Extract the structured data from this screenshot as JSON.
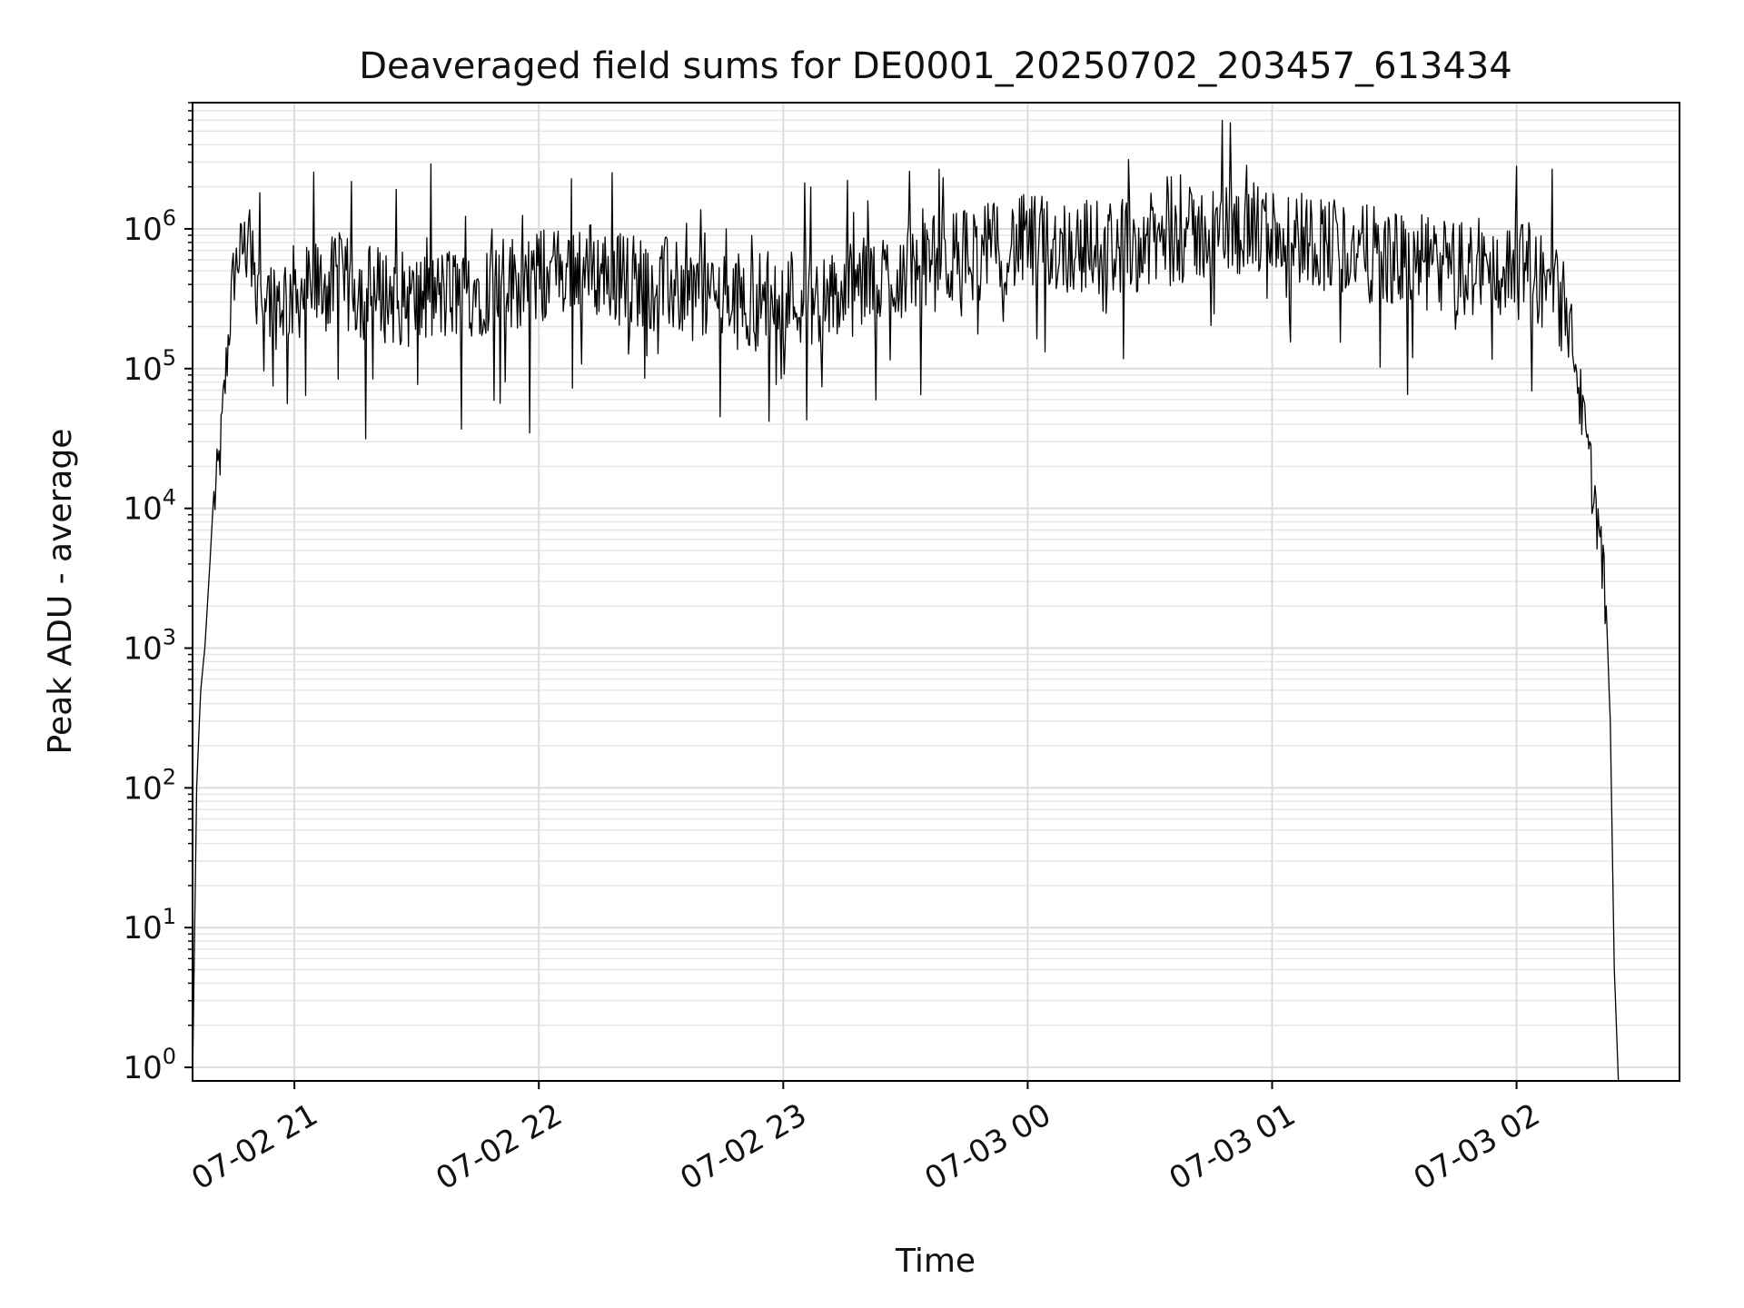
{
  "chart_data": {
    "type": "line",
    "title": "Deaveraged field sums for DE0001_20250702_203457_613434",
    "xlabel": "Time",
    "ylabel": "Peak ADU - average",
    "y_scale": "log",
    "xlim": [
      "07-02 20:35",
      "07-03 02:40"
    ],
    "ylim": [
      0.8,
      8000000
    ],
    "x_ticks": [
      "07-02 21",
      "07-02 22",
      "07-02 23",
      "07-03 00",
      "07-03 01",
      "07-03 02"
    ],
    "y_ticks": [
      {
        "base": "10",
        "exp": "0",
        "value": 1
      },
      {
        "base": "10",
        "exp": "1",
        "value": 10
      },
      {
        "base": "10",
        "exp": "2",
        "value": 100
      },
      {
        "base": "10",
        "exp": "3",
        "value": 1000
      },
      {
        "base": "10",
        "exp": "4",
        "value": 10000
      },
      {
        "base": "10",
        "exp": "5",
        "value": 100000
      },
      {
        "base": "10",
        "exp": "6",
        "value": 1000000
      }
    ],
    "grid": true,
    "legend": "none",
    "line_color": "#000000",
    "series": [
      {
        "x": [
          "07-02 20:35",
          "07-02 20:36",
          "07-02 20:37",
          "07-02 20:38",
          "07-02 20:39",
          "07-02 20:40",
          "07-02 20:41",
          "07-02 20:42",
          "07-02 20:43",
          "07-02 20:44",
          "07-02 20:45",
          "07-02 20:46",
          "07-02 20:47",
          "07-02 20:48",
          "07-02 20:50",
          "07-02 20:52",
          "07-02 20:55",
          "07-02 21:00",
          "07-02 21:10",
          "07-02 21:20",
          "07-02 21:30",
          "07-02 21:40",
          "07-02 21:50",
          "07-02 22:00",
          "07-02 22:10",
          "07-02 22:20",
          "07-02 22:30",
          "07-02 22:40",
          "07-02 22:50",
          "07-02 23:00",
          "07-02 23:10",
          "07-02 23:20",
          "07-02 23:30",
          "07-02 23:40",
          "07-02 23:50",
          "07-03 00:00",
          "07-03 00:10",
          "07-03 00:20",
          "07-03 00:30",
          "07-03 00:40",
          "07-03 00:50",
          "07-03 01:00",
          "07-03 01:10",
          "07-03 01:20",
          "07-03 01:30",
          "07-03 01:40",
          "07-03 01:50",
          "07-03 02:00",
          "07-03 02:05",
          "07-03 02:08",
          "07-03 02:10",
          "07-03 02:12",
          "07-03 02:14",
          "07-03 02:16",
          "07-03 02:18",
          "07-03 02:20",
          "07-03 02:22",
          "07-03 02:23",
          "07-03 02:24",
          "07-03 02:25"
        ],
        "y": [
          0.8,
          100,
          500,
          1000,
          3000,
          10000,
          15000,
          30000,
          80000,
          200000,
          450000,
          600000,
          700000,
          800000,
          700000,
          400000,
          300000,
          350000,
          400000,
          350000,
          300000,
          350000,
          400000,
          450000,
          550000,
          450000,
          400000,
          350000,
          300000,
          350000,
          300000,
          400000,
          500000,
          600000,
          700000,
          800000,
          750000,
          750000,
          800000,
          900000,
          1000000,
          950000,
          850000,
          700000,
          600000,
          550000,
          500000,
          500000,
          450000,
          400000,
          350000,
          250000,
          150000,
          50000,
          20000,
          8000,
          2000,
          300,
          5,
          0.8
        ]
      }
    ]
  }
}
